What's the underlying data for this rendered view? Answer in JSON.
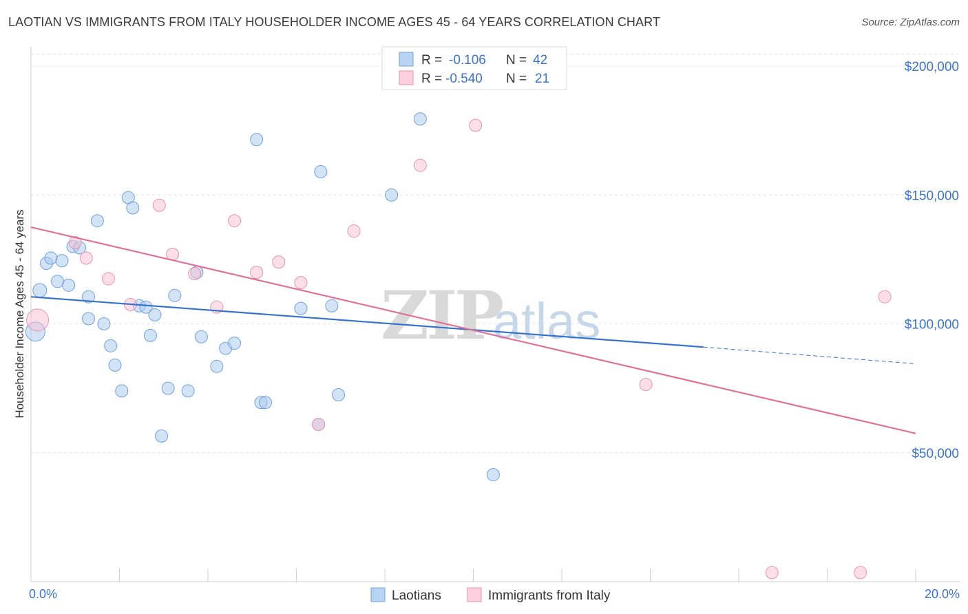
{
  "header": {
    "title": "LAOTIAN VS IMMIGRANTS FROM ITALY HOUSEHOLDER INCOME AGES 45 - 64 YEARS CORRELATION CHART",
    "source": "Source: ZipAtlas.com"
  },
  "watermark": {
    "zip": "ZIP",
    "atlas": "atlas"
  },
  "chart_data": {
    "type": "scatter",
    "ylabel": "Householder Income Ages 45 - 64 years",
    "xlim": [
      0,
      20
    ],
    "ylim": [
      0,
      205000
    ],
    "x_tick_labels": {
      "left": "0.0%",
      "right": "20.0%"
    },
    "y_ticks": [
      {
        "value": 50000,
        "label": "$50,000"
      },
      {
        "value": 100000,
        "label": "$100,000"
      },
      {
        "value": 150000,
        "label": "$150,000"
      },
      {
        "value": 200000,
        "label": "$200,000"
      }
    ],
    "grid": true,
    "legend_stats": [
      {
        "r_label": "R =",
        "r_value": "-0.106",
        "n_label": "N =",
        "n_value": "42"
      },
      {
        "r_label": "R =",
        "r_value": "-0.540",
        "n_label": "N =",
        "n_value": "21"
      }
    ],
    "series": [
      {
        "name": "Laotians",
        "color": "#a8c8ee",
        "stroke": "#6fa0dc",
        "trend_color": "#3572cc",
        "trend": {
          "x0": 0,
          "y0": 110500,
          "x1": 15.2,
          "y1": 91000,
          "dash_x1": 20,
          "dash_y1": 84500
        },
        "points": [
          [
            0.1,
            97000,
            14
          ],
          [
            0.2,
            113000,
            10
          ],
          [
            0.35,
            123500,
            9
          ],
          [
            0.45,
            125500,
            9
          ],
          [
            0.6,
            116500,
            9
          ],
          [
            0.7,
            124500,
            9
          ],
          [
            0.85,
            115000,
            9
          ],
          [
            0.95,
            130000,
            9
          ],
          [
            1.1,
            129500,
            9
          ],
          [
            1.3,
            110500,
            9
          ],
          [
            1.5,
            140000,
            9
          ],
          [
            1.3,
            102000,
            9
          ],
          [
            1.65,
            100000,
            9
          ],
          [
            1.8,
            91500,
            9
          ],
          [
            1.9,
            84000,
            9
          ],
          [
            2.05,
            74000,
            9
          ],
          [
            2.2,
            149000,
            9
          ],
          [
            2.3,
            145000,
            9
          ],
          [
            2.45,
            107000,
            9
          ],
          [
            2.6,
            106500,
            9
          ],
          [
            2.7,
            95500,
            9
          ],
          [
            2.8,
            103500,
            9
          ],
          [
            2.95,
            56500,
            9
          ],
          [
            3.1,
            75000,
            9
          ],
          [
            3.25,
            111000,
            9
          ],
          [
            3.55,
            74000,
            9
          ],
          [
            3.75,
            120000,
            9
          ],
          [
            3.85,
            95000,
            9
          ],
          [
            4.2,
            83500,
            9
          ],
          [
            4.4,
            90500,
            9
          ],
          [
            4.6,
            92500,
            9
          ],
          [
            5.1,
            171500,
            9
          ],
          [
            5.2,
            69500,
            9
          ],
          [
            5.3,
            69500,
            9
          ],
          [
            6.1,
            106000,
            9
          ],
          [
            6.5,
            61000,
            9
          ],
          [
            6.55,
            159000,
            9
          ],
          [
            6.8,
            107000,
            9
          ],
          [
            6.95,
            72500,
            9
          ],
          [
            8.15,
            150000,
            9
          ],
          [
            8.8,
            179500,
            9
          ],
          [
            10.45,
            41500,
            9
          ]
        ]
      },
      {
        "name": "Immigrants from Italy",
        "color": "#f8bfd2",
        "stroke": "#e891ae",
        "trend_color": "#e0709a",
        "trend": {
          "x0": 0,
          "y0": 137500,
          "x1": 20,
          "y1": 57500
        },
        "points": [
          [
            0.15,
            101500,
            16
          ],
          [
            1.0,
            131500,
            9
          ],
          [
            1.25,
            125500,
            9
          ],
          [
            1.75,
            117500,
            9
          ],
          [
            2.25,
            107500,
            9
          ],
          [
            2.9,
            146000,
            9
          ],
          [
            3.2,
            127000,
            9
          ],
          [
            3.7,
            119500,
            9
          ],
          [
            4.2,
            106500,
            9
          ],
          [
            4.6,
            140000,
            9
          ],
          [
            5.1,
            120000,
            9
          ],
          [
            5.6,
            124000,
            9
          ],
          [
            6.1,
            116000,
            9
          ],
          [
            6.5,
            61000,
            9
          ],
          [
            7.3,
            136000,
            9
          ],
          [
            8.8,
            161500,
            9
          ],
          [
            10.05,
            177000,
            9
          ],
          [
            13.9,
            76500,
            9
          ],
          [
            16.75,
            3500,
            9
          ],
          [
            18.75,
            3500,
            9
          ],
          [
            19.3,
            110500,
            9
          ]
        ]
      }
    ]
  }
}
